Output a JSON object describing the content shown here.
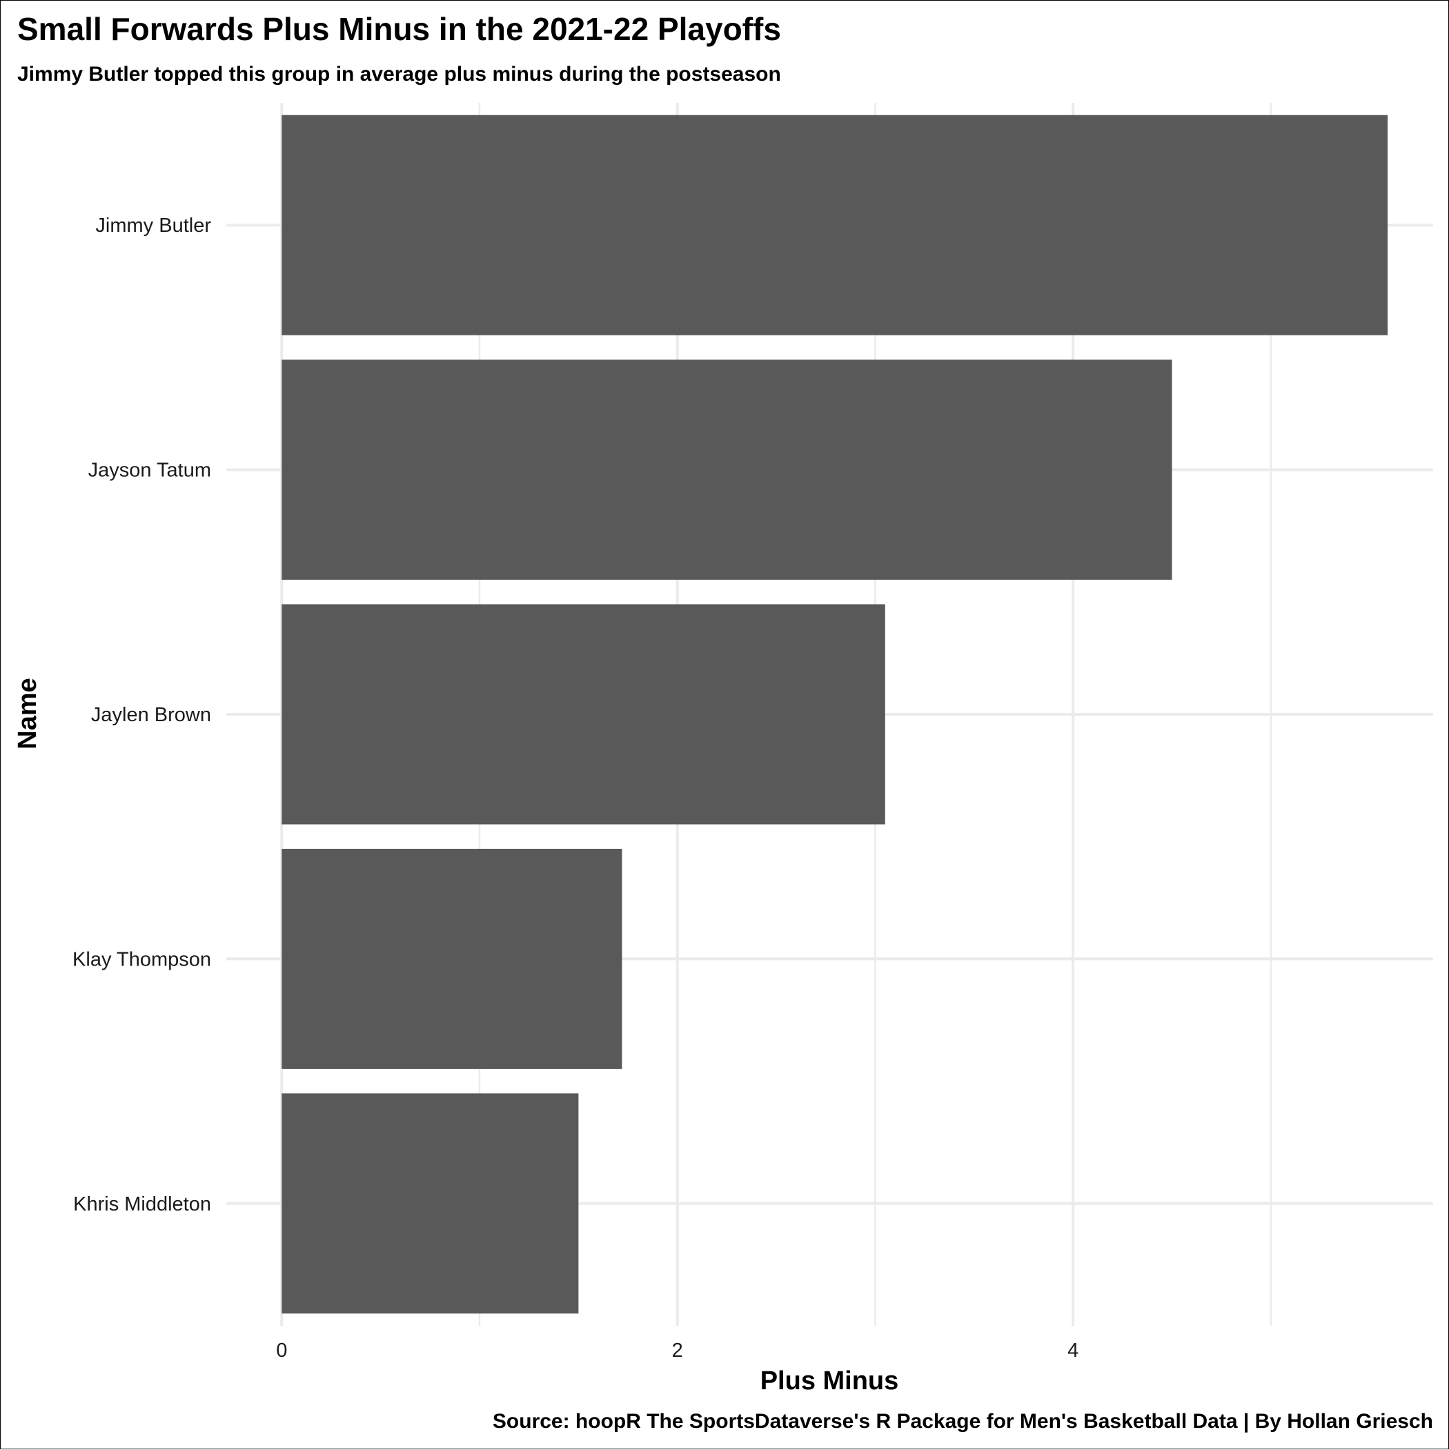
{
  "chart_data": {
    "type": "bar",
    "orientation": "horizontal",
    "title": "Small Forwards Plus Minus in the 2021-22 Playoffs",
    "subtitle": "Jimmy Butler topped this group in average plus minus during the postseason",
    "xlabel": "Plus Minus",
    "ylabel": "Name",
    "caption": "Source: hoopR The SportsDataverse's R Package for Men's Basketball Data | By Hollan Griesch",
    "categories": [
      "Jimmy Butler",
      "Jayson Tatum",
      "Jaylen Brown",
      "Klay Thompson",
      "Khris Middleton"
    ],
    "values": [
      5.59,
      4.5,
      3.05,
      1.72,
      1.5
    ],
    "x_ticks": [
      0,
      2,
      4
    ],
    "xlim": [
      -0.28,
      5.82
    ],
    "grid": true,
    "legend": "none",
    "bar_color": "#595959",
    "grid_color": "#ebebeb"
  }
}
